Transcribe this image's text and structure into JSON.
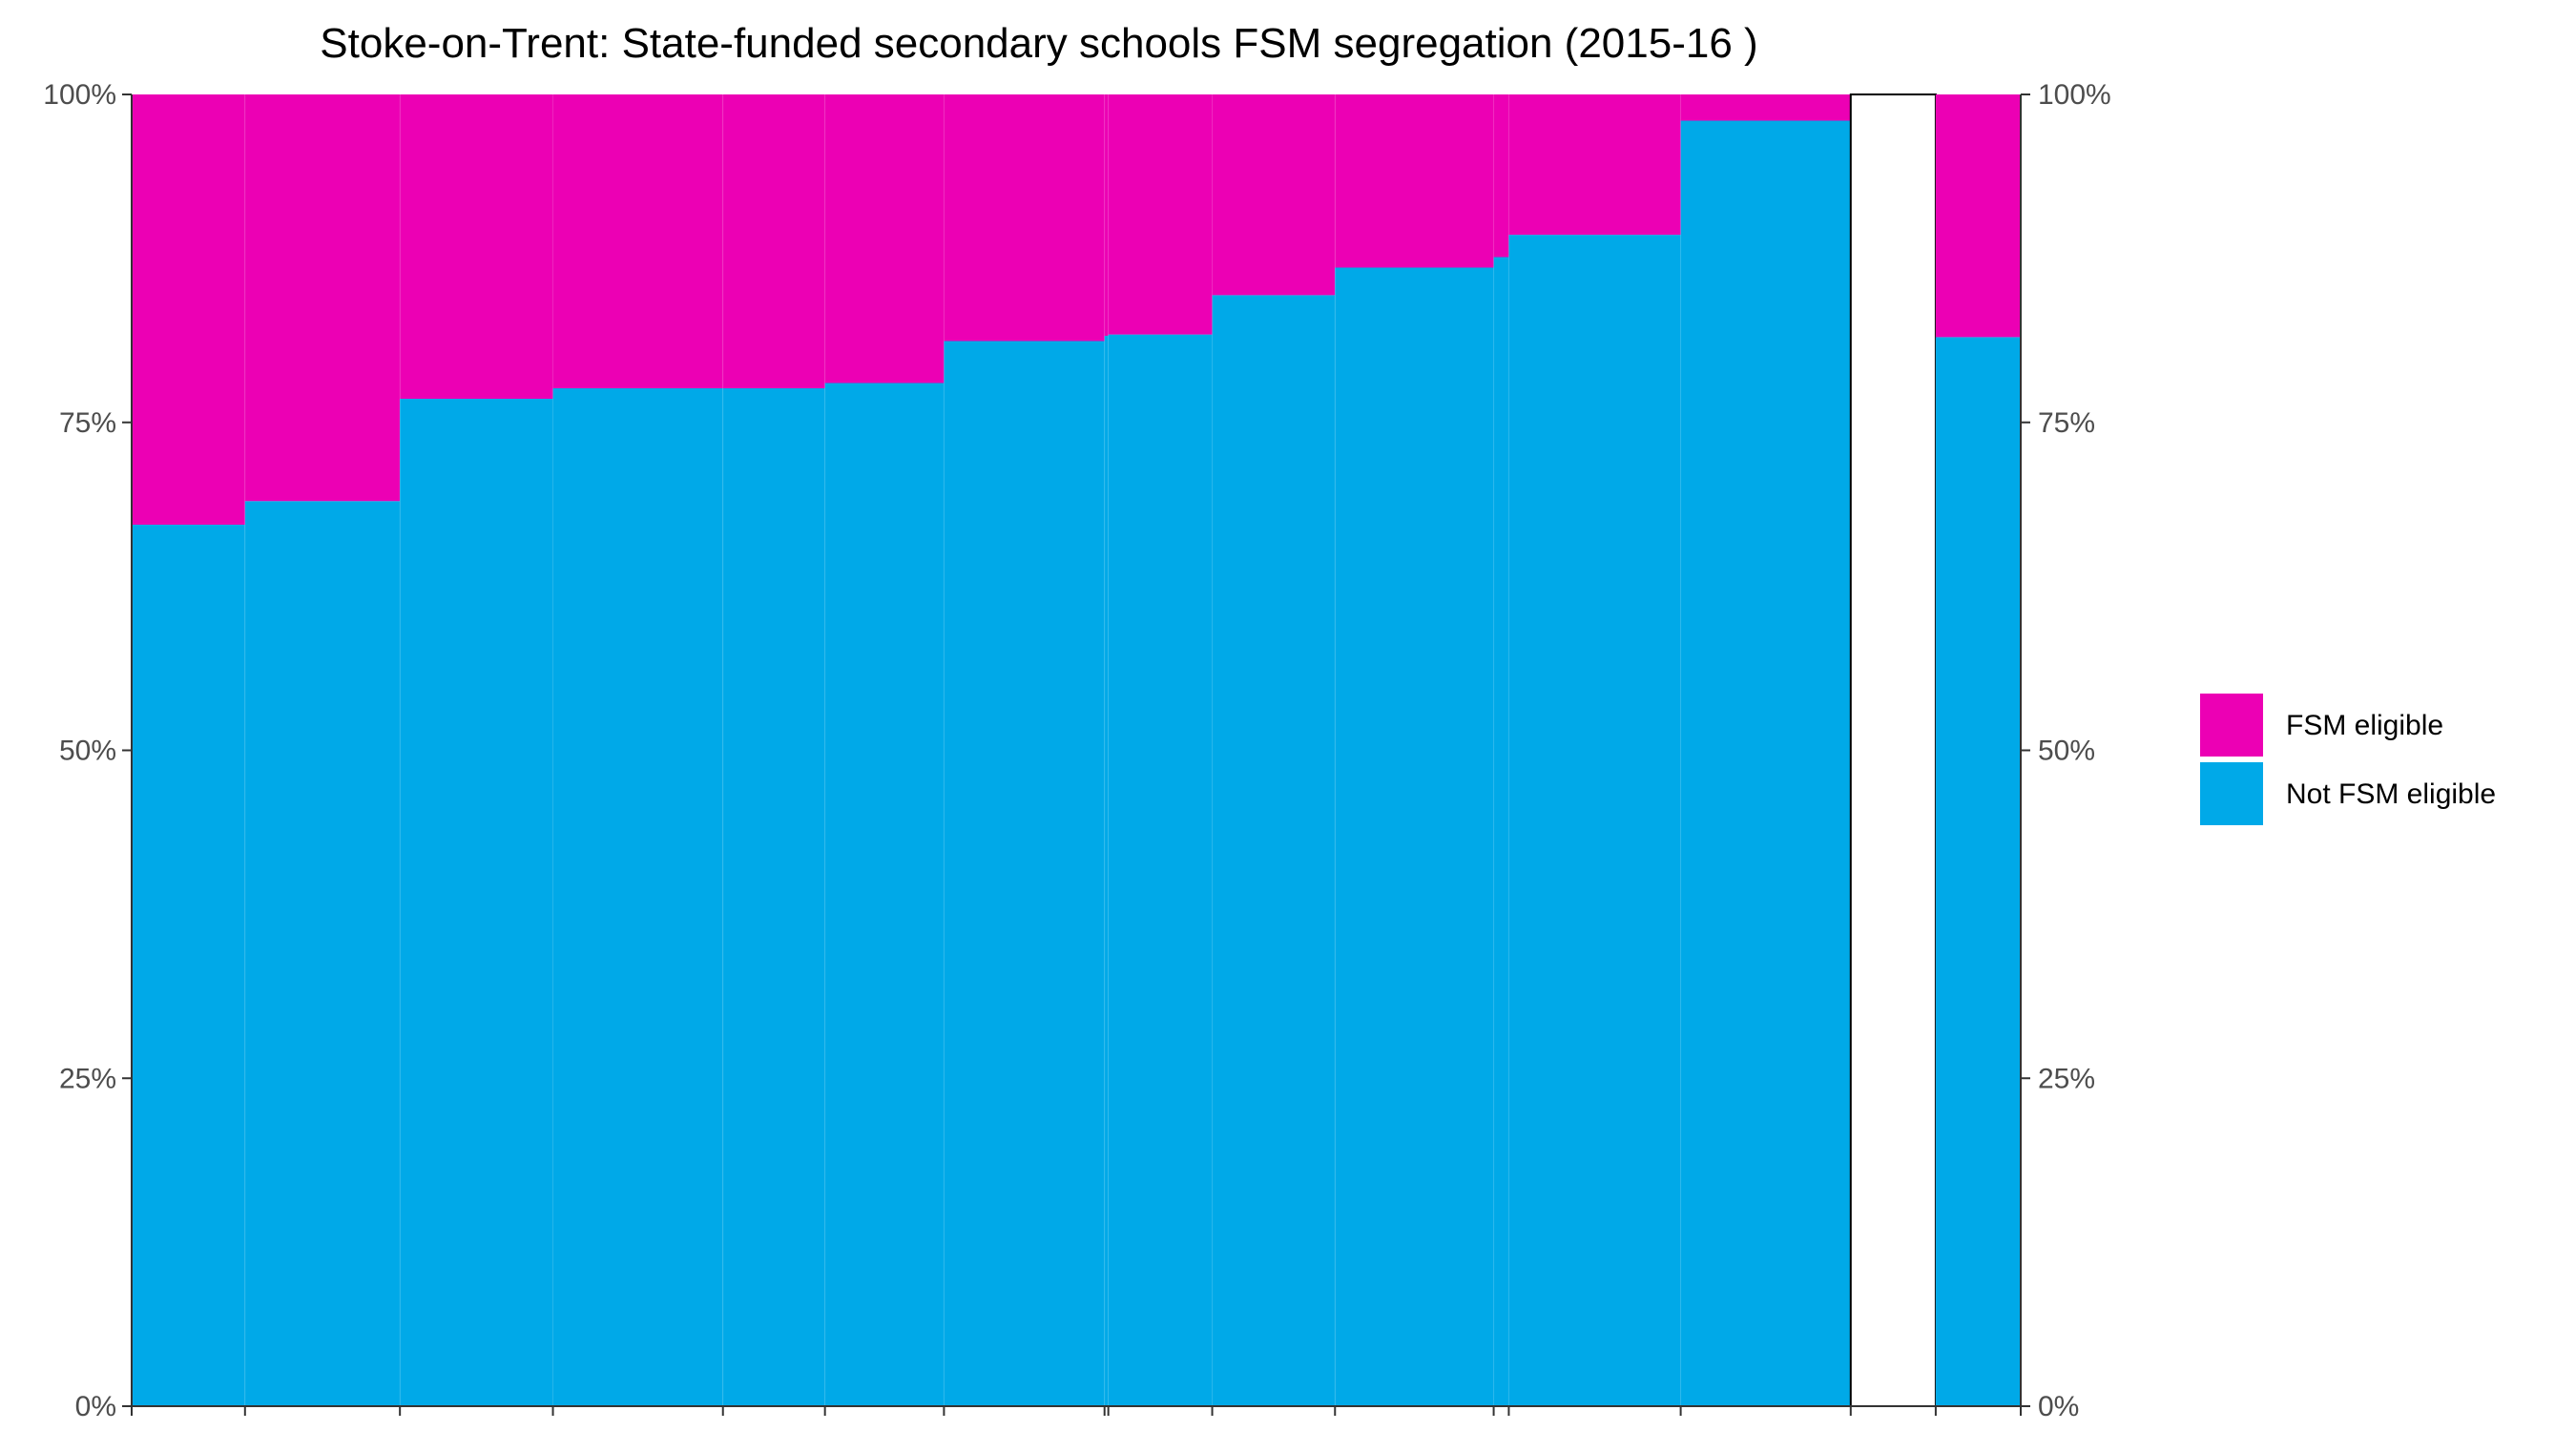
{
  "chart_data": {
    "type": "bar",
    "subtype": "stacked-100-percent-variable-width",
    "title": "Stoke-on-Trent: State-funded secondary schools FSM segregation (2015-16 )",
    "xlabel": "",
    "ylabel": "",
    "ylim": [
      0,
      100
    ],
    "y_tick_labels": [
      "0%",
      "25%",
      "50%",
      "75%",
      "100%"
    ],
    "y_ticks": [
      0,
      25,
      50,
      75,
      100
    ],
    "y_axes": [
      "left",
      "right"
    ],
    "grid": false,
    "legend": {
      "placement": "right",
      "entries": [
        {
          "name": "FSM eligible",
          "color": "#EC00B4"
        },
        {
          "name": "Not FSM eligible",
          "color": "#00A9E8"
        }
      ]
    },
    "colors": {
      "fsm": "#EC00B4",
      "not_fsm": "#00A9E8",
      "gap": "#FFFFFF"
    },
    "bars": [
      {
        "width": 6.0,
        "not_fsm_pct": 67.2
      },
      {
        "width": 8.2,
        "not_fsm_pct": 69.0
      },
      {
        "width": 8.1,
        "not_fsm_pct": 76.8
      },
      {
        "width": 9.0,
        "not_fsm_pct": 77.6
      },
      {
        "width": 5.4,
        "not_fsm_pct": 77.6
      },
      {
        "width": 6.3,
        "not_fsm_pct": 78.0
      },
      {
        "width": 8.5,
        "not_fsm_pct": 81.2
      },
      {
        "width": 0.2,
        "not_fsm_pct": 81.6
      },
      {
        "width": 5.5,
        "not_fsm_pct": 81.7
      },
      {
        "width": 6.5,
        "not_fsm_pct": 84.7
      },
      {
        "width": 8.4,
        "not_fsm_pct": 86.8
      },
      {
        "width": 0.8,
        "not_fsm_pct": 87.6
      },
      {
        "width": 9.1,
        "not_fsm_pct": 89.3
      },
      {
        "width": 9.0,
        "not_fsm_pct": 98.0
      },
      {
        "width": 4.5,
        "not_fsm_pct": null,
        "role": "gap"
      },
      {
        "width": 4.5,
        "not_fsm_pct": 81.5,
        "role": "total"
      }
    ]
  }
}
